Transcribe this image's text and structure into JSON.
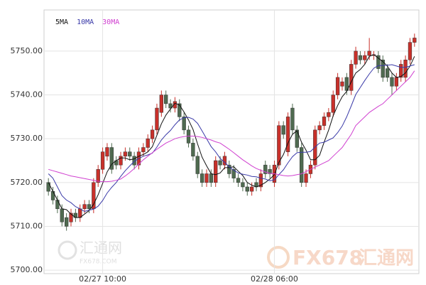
{
  "chart_data": {
    "type": "candlestick",
    "categories": [
      null,
      null,
      null,
      null,
      null,
      null,
      null,
      null,
      null,
      null,
      null,
      null,
      "02/27 10:00",
      null,
      null,
      null,
      null,
      null,
      null,
      null,
      null,
      null,
      null,
      null,
      null,
      null,
      null,
      null,
      null,
      null,
      null,
      null,
      null,
      null,
      null,
      null,
      null,
      null,
      null,
      null,
      null,
      null,
      null,
      null,
      null,
      null,
      null,
      null,
      null,
      null,
      "02/28 06:00",
      null,
      null,
      null,
      null,
      null,
      null,
      null,
      null,
      null,
      null,
      null,
      null,
      null,
      null,
      null,
      null,
      null,
      null,
      null,
      null,
      null,
      null,
      null,
      null,
      null,
      null,
      null,
      null,
      null,
      null,
      null
    ],
    "open": [
      5720,
      5718,
      5716,
      5714,
      5712,
      5711,
      5713,
      5712,
      5714,
      5715,
      5714,
      5720,
      5723,
      5726,
      5728,
      5725,
      5724,
      5726,
      5727,
      5726,
      5724,
      5727,
      5728,
      5730,
      5732,
      5736,
      5740,
      5738,
      5737,
      5738,
      5735,
      5732,
      5729,
      5726,
      5722,
      5720,
      5722,
      5720,
      5725,
      5724,
      5724,
      5723,
      5721,
      5720,
      5719,
      5718,
      5720,
      5719,
      5724,
      5723,
      5720,
      5724,
      5733,
      5727,
      5737,
      5732,
      5728,
      5720,
      5722,
      5724,
      5732,
      5733,
      5735,
      5736,
      5740,
      5742,
      5744,
      5741,
      5747,
      5749,
      5748,
      5749,
      5749,
      5749,
      5748,
      5746,
      5744,
      5742,
      5744,
      5744,
      5748,
      5752
    ],
    "high": [
      5721,
      5719,
      5717,
      5715,
      5713,
      5714,
      5714,
      5715,
      5716,
      5716,
      5721,
      5724,
      5728,
      5729,
      5729,
      5726,
      5727,
      5728,
      5728,
      5727,
      5728,
      5729,
      5731,
      5733,
      5738,
      5741,
      5741,
      5739,
      5739.5,
      5739,
      5736,
      5733,
      5730,
      5727,
      5723,
      5723,
      5723,
      5726,
      5726,
      5727,
      5725,
      5724,
      5722,
      5721,
      5720,
      5720,
      5721,
      5723,
      5725,
      5724,
      5725,
      5734,
      5734,
      5736,
      5738,
      5733,
      5729,
      5723,
      5725,
      5733,
      5734,
      5736,
      5737,
      5741,
      5745,
      5744,
      5745,
      5748,
      5751,
      5750,
      5750,
      5753,
      5750,
      5750,
      5749,
      5747,
      5745,
      5745,
      5748,
      5749,
      5753,
      5754
    ],
    "low": [
      5717,
      5715,
      5713,
      5710,
      5709,
      5710,
      5711,
      5711,
      5713,
      5713,
      5713,
      5719,
      5722,
      5725,
      5722,
      5723,
      5723,
      5725,
      5725,
      5723,
      5723,
      5726,
      5727,
      5729,
      5731,
      5735,
      5737,
      5736,
      5736,
      5734,
      5731,
      5728,
      5725,
      5721,
      5719,
      5719,
      5719,
      5719,
      5723,
      5723,
      5721,
      5720,
      5719,
      5718,
      5717,
      5717,
      5718,
      5718,
      5721,
      5721,
      5719,
      5723,
      5730,
      5726,
      5731,
      5727,
      5719,
      5719,
      5721,
      5723,
      5731,
      5732,
      5734,
      5735,
      5739,
      5741,
      5740,
      5740,
      5746,
      5747,
      5747,
      5748,
      5748,
      5745,
      5743,
      5743,
      5740,
      5741,
      5743,
      5743,
      5747,
      5751
    ],
    "close": [
      5718,
      5716,
      5714,
      5711,
      5710,
      5713,
      5712,
      5714,
      5715,
      5714,
      5720,
      5723,
      5727,
      5728,
      5723,
      5724,
      5726,
      5727,
      5726,
      5724,
      5727,
      5728,
      5730,
      5732,
      5737,
      5740,
      5738,
      5737,
      5738.5,
      5735,
      5732,
      5729,
      5726,
      5722,
      5720,
      5722,
      5720,
      5725,
      5724,
      5726,
      5722,
      5721,
      5720,
      5719,
      5718,
      5719,
      5719,
      5722,
      5722,
      5722,
      5724,
      5733,
      5731,
      5735,
      5732,
      5728,
      5720,
      5722,
      5724,
      5732,
      5733,
      5735,
      5736,
      5740,
      5744,
      5743,
      5741,
      5747,
      5750,
      5748,
      5749,
      5750,
      5749.2,
      5746,
      5744,
      5744,
      5742,
      5744,
      5747,
      5748,
      5752,
      5753
    ],
    "up_color": "#c8302a",
    "down_color": "#4f6b50",
    "series": [
      {
        "name": "5MA",
        "color": "#111111",
        "values": [
          5720,
          5718,
          5716,
          5714,
          5713.8,
          5712.8,
          5712,
          5712,
          5712.8,
          5713.6,
          5715,
          5717.2,
          5719.8,
          5722.4,
          5724.2,
          5725,
          5725.6,
          5725.6,
          5725.2,
          5725.4,
          5726,
          5726.4,
          5727,
          5728.2,
          5730.8,
          5733.4,
          5735.4,
          5736.8,
          5738.1,
          5737.7,
          5736.1,
          5734.3,
          5732.1,
          5728.8,
          5725.8,
          5723.8,
          5722,
          5721.8,
          5722.2,
          5723.4,
          5723.4,
          5723.6,
          5722.6,
          5721.6,
          5720,
          5719.4,
          5719,
          5719.4,
          5720,
          5720.8,
          5721.8,
          5724.6,
          5726.4,
          5729,
          5731,
          5731.8,
          5729.2,
          5727.4,
          5725.2,
          5725.2,
          5726.2,
          5729.2,
          5732,
          5735.2,
          5737.6,
          5739.6,
          5740.8,
          5743,
          5745,
          5745.8,
          5747,
          5748.8,
          5749.2,
          5748.4,
          5747.6,
          5746.6,
          5745,
          5744,
          5744.2,
          5745,
          5746.6,
          5748.8
        ]
      },
      {
        "name": "10MA",
        "color": "#3a3aa8",
        "values": [
          5722,
          5721,
          5719,
          5717,
          5716,
          5715.4,
          5714.5,
          5714,
          5713.4,
          5713.7,
          5713.9,
          5714.6,
          5715.9,
          5717.6,
          5718.9,
          5720,
          5721.4,
          5722.7,
          5723.8,
          5724.8,
          5725.5,
          5726,
          5726.3,
          5726.7,
          5728.1,
          5729.7,
          5730.9,
          5731.9,
          5733.2,
          5734.3,
          5734.8,
          5734.9,
          5734.5,
          5733.5,
          5731.8,
          5730,
          5728.2,
          5727,
          5725.5,
          5724.6,
          5723.6,
          5722.8,
          5722.2,
          5721.9,
          5721.7,
          5721.4,
          5721.3,
          5721,
          5720.8,
          5720.4,
          5720.6,
          5721.8,
          5722.9,
          5724.5,
          5725.9,
          5726.8,
          5726.9,
          5726.9,
          5727.1,
          5728.1,
          5729,
          5729.2,
          5729.7,
          5730.2,
          5731.4,
          5732.9,
          5735,
          5737.5,
          5740.1,
          5741.7,
          5743.3,
          5744.8,
          5746.1,
          5746.7,
          5746.7,
          5746.8,
          5746.9,
          5746.6,
          5746.3,
          5746.3,
          5746.6,
          5746.9
        ]
      },
      {
        "name": "30MA",
        "color": "#d040d0",
        "values": [
          5723,
          5722.7,
          5722.4,
          5722.1,
          5721.8,
          5721.5,
          5721.3,
          5721.1,
          5720.9,
          5720.7,
          5720.5,
          5720.3,
          5720.2,
          5720.2,
          5720.3,
          5720.5,
          5720.8,
          5721.5,
          5722.3,
          5723.2,
          5724.2,
          5725.2,
          5726,
          5726.8,
          5727.6,
          5728.3,
          5729,
          5729.5,
          5730,
          5730.3,
          5730.5,
          5730.6,
          5730.6,
          5730.5,
          5730.3,
          5730,
          5729.7,
          5729.3,
          5729,
          5728.3,
          5727.6,
          5726.8,
          5726,
          5725.2,
          5724.5,
          5723.8,
          5723.2,
          5722.8,
          5722.4,
          5722.1,
          5722,
          5721.8,
          5721.6,
          5721.5,
          5721.6,
          5721.8,
          5722,
          5722.5,
          5723,
          5723.5,
          5724,
          5724.5,
          5725,
          5726,
          5727,
          5728,
          5729.5,
          5731,
          5733,
          5734,
          5735,
          5736,
          5736.7,
          5737.4,
          5738,
          5739,
          5740,
          5741,
          5742,
          5743,
          5744,
          5745.5
        ]
      }
    ],
    "ylim": [
      5699.2,
      5759.4
    ],
    "yticks": [
      {
        "value": 5700,
        "label": "5700.00"
      },
      {
        "value": 5710,
        "label": "5710.00"
      },
      {
        "value": 5720,
        "label": "5720.00"
      },
      {
        "value": 5730,
        "label": "5730.00"
      },
      {
        "value": 5740,
        "label": "5740.00"
      },
      {
        "value": 5750,
        "label": "5750.00"
      }
    ],
    "grid": true,
    "watermarks": [
      "汇通网",
      "FX678.COM",
      "FX678",
      "汇通网"
    ]
  }
}
